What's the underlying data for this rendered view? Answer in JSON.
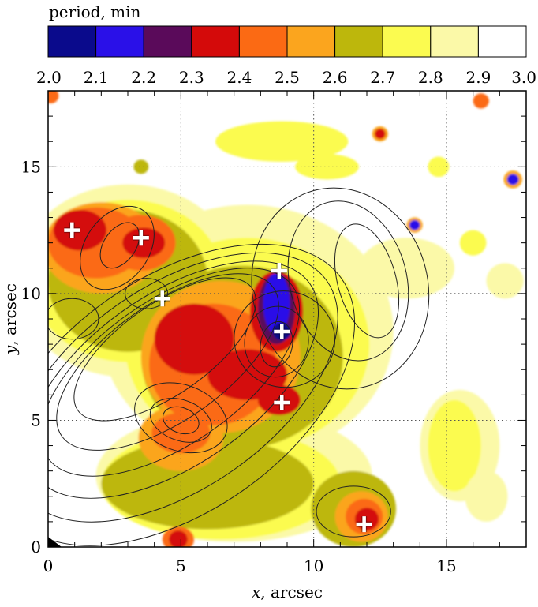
{
  "chart_data": {
    "type": "heatmap",
    "colorbar": {
      "title": "period, min",
      "ticks": [
        "2.0",
        "2.1",
        "2.2",
        "2.3",
        "2.4",
        "2.5",
        "2.6",
        "2.7",
        "2.8",
        "2.9",
        "3.0"
      ],
      "range": [
        2.0,
        3.0
      ],
      "bins": [
        {
          "from": 2.0,
          "to": 2.1,
          "color": "#0a0a8c"
        },
        {
          "from": 2.1,
          "to": 2.2,
          "color": "#2a10e8"
        },
        {
          "from": 2.2,
          "to": 2.3,
          "color": "#5a0a5a"
        },
        {
          "from": 2.3,
          "to": 2.4,
          "color": "#d40a0a"
        },
        {
          "from": 2.4,
          "to": 2.5,
          "color": "#fb6a14"
        },
        {
          "from": 2.5,
          "to": 2.6,
          "color": "#fba51e"
        },
        {
          "from": 2.6,
          "to": 2.7,
          "color": "#bdb70c"
        },
        {
          "from": 2.7,
          "to": 2.8,
          "color": "#fbfb50"
        },
        {
          "from": 2.8,
          "to": 2.9,
          "color": "#fbf9a8"
        },
        {
          "from": 2.9,
          "to": 3.0,
          "color": "#ffffff"
        }
      ]
    },
    "xlabel_var": "x",
    "xlabel_unit": ", arcsec",
    "ylabel_var": "y",
    "ylabel_unit": ", arcsec",
    "xlim": [
      0,
      18
    ],
    "ylim": [
      0,
      18
    ],
    "xticks": [
      0,
      5,
      10,
      15
    ],
    "yticks": [
      0,
      5,
      10,
      15
    ],
    "grid": true,
    "markers": [
      {
        "x": 0.9,
        "y": 12.5
      },
      {
        "x": 3.5,
        "y": 12.2
      },
      {
        "x": 4.3,
        "y": 9.8
      },
      {
        "x": 8.7,
        "y": 10.9
      },
      {
        "x": 8.8,
        "y": 8.5
      },
      {
        "x": 8.8,
        "y": 5.7
      },
      {
        "x": 11.9,
        "y": 0.9
      }
    ],
    "blobs": [
      {
        "x": 7.5,
        "y": 8.5,
        "rx": 5.5,
        "ry": 5.0,
        "color": "#fbf9a8"
      },
      {
        "x": 3.0,
        "y": 10.5,
        "rx": 4.2,
        "ry": 3.8,
        "color": "#fbf9a8"
      },
      {
        "x": 7.0,
        "y": 2.8,
        "rx": 5.2,
        "ry": 2.6,
        "color": "#fbf9a8"
      },
      {
        "x": 15.5,
        "y": 4.0,
        "rx": 1.5,
        "ry": 2.2,
        "color": "#fbf9a8"
      },
      {
        "x": 3.0,
        "y": 10.5,
        "rx": 3.6,
        "ry": 3.2,
        "color": "#fbfb50"
      },
      {
        "x": 7.5,
        "y": 8.0,
        "rx": 4.6,
        "ry": 4.2,
        "color": "#fbfb50"
      },
      {
        "x": 6.5,
        "y": 2.5,
        "rx": 4.5,
        "ry": 2.2,
        "color": "#fbfb50"
      },
      {
        "x": 15.3,
        "y": 4.0,
        "rx": 1.0,
        "ry": 1.8,
        "color": "#fbfb50"
      },
      {
        "x": 3.0,
        "y": 10.5,
        "rx": 3.0,
        "ry": 2.8,
        "color": "#bdb70c"
      },
      {
        "x": 7.3,
        "y": 7.5,
        "rx": 3.8,
        "ry": 3.6,
        "color": "#bdb70c"
      },
      {
        "x": 6.0,
        "y": 2.5,
        "rx": 4.0,
        "ry": 1.8,
        "color": "#bdb70c"
      },
      {
        "x": 11.5,
        "y": 1.5,
        "rx": 1.6,
        "ry": 1.5,
        "color": "#bdb70c"
      },
      {
        "x": 2.0,
        "y": 11.8,
        "rx": 2.2,
        "ry": 1.8,
        "color": "#fba51e"
      },
      {
        "x": 6.5,
        "y": 7.5,
        "rx": 3.0,
        "ry": 3.0,
        "color": "#fba51e"
      },
      {
        "x": 5.0,
        "y": 4.3,
        "rx": 1.6,
        "ry": 1.3,
        "color": "#fba51e"
      },
      {
        "x": 11.8,
        "y": 1.2,
        "rx": 1.0,
        "ry": 1.0,
        "color": "#fba51e"
      },
      {
        "x": 1.8,
        "y": 12.0,
        "rx": 1.8,
        "ry": 1.4,
        "color": "#fb6a14"
      },
      {
        "x": 3.5,
        "y": 12.0,
        "rx": 1.3,
        "ry": 1.1,
        "color": "#fb6a14"
      },
      {
        "x": 6.2,
        "y": 7.2,
        "rx": 2.4,
        "ry": 2.4,
        "color": "#fb6a14"
      },
      {
        "x": 5.0,
        "y": 4.5,
        "rx": 1.1,
        "ry": 0.8,
        "color": "#fb6a14"
      },
      {
        "x": 11.9,
        "y": 1.2,
        "rx": 0.7,
        "ry": 0.7,
        "color": "#fb6a14"
      },
      {
        "x": 4.9,
        "y": 0.3,
        "rx": 0.6,
        "ry": 0.5,
        "color": "#fb6a14"
      },
      {
        "x": 1.2,
        "y": 12.5,
        "rx": 1.0,
        "ry": 0.8,
        "color": "#d40a0a"
      },
      {
        "x": 3.6,
        "y": 12.0,
        "rx": 0.8,
        "ry": 0.6,
        "color": "#d40a0a"
      },
      {
        "x": 5.5,
        "y": 8.2,
        "rx": 1.5,
        "ry": 1.4,
        "color": "#d40a0a"
      },
      {
        "x": 7.5,
        "y": 6.8,
        "rx": 1.5,
        "ry": 1.0,
        "color": "#d40a0a"
      },
      {
        "x": 8.7,
        "y": 5.8,
        "rx": 0.8,
        "ry": 0.6,
        "color": "#d40a0a"
      },
      {
        "x": 8.6,
        "y": 9.3,
        "rx": 1.0,
        "ry": 1.6,
        "color": "#d40a0a"
      },
      {
        "x": 12.0,
        "y": 1.1,
        "rx": 0.45,
        "ry": 0.45,
        "color": "#d40a0a"
      },
      {
        "x": 4.9,
        "y": 0.3,
        "rx": 0.35,
        "ry": 0.35,
        "color": "#d40a0a"
      },
      {
        "x": 8.6,
        "y": 9.4,
        "rx": 0.7,
        "ry": 1.4,
        "color": "#5a0a5a"
      },
      {
        "x": 8.6,
        "y": 9.6,
        "rx": 0.5,
        "ry": 1.2,
        "color": "#2a10e8"
      },
      {
        "x": 8.8,
        "y": 8.5,
        "rx": 0.35,
        "ry": 0.35,
        "color": "#0a0a8c"
      },
      {
        "x": 12.5,
        "y": 16.3,
        "rx": 0.3,
        "ry": 0.3,
        "color": "#fba51e"
      },
      {
        "x": 12.5,
        "y": 16.3,
        "rx": 0.2,
        "ry": 0.2,
        "color": "#d40a0a"
      },
      {
        "x": 13.8,
        "y": 12.7,
        "rx": 0.3,
        "ry": 0.3,
        "color": "#fba51e"
      },
      {
        "x": 13.8,
        "y": 12.7,
        "rx": 0.2,
        "ry": 0.2,
        "color": "#2a10e8"
      },
      {
        "x": 17.5,
        "y": 14.5,
        "rx": 0.35,
        "ry": 0.35,
        "color": "#fba51e"
      },
      {
        "x": 17.5,
        "y": 14.5,
        "rx": 0.22,
        "ry": 0.22,
        "color": "#2a10e8"
      },
      {
        "x": 3.5,
        "y": 15.0,
        "rx": 0.28,
        "ry": 0.28,
        "color": "#bdb70c"
      },
      {
        "x": 16.3,
        "y": 17.6,
        "rx": 0.3,
        "ry": 0.3,
        "color": "#fb6a14"
      },
      {
        "x": 0.1,
        "y": 17.8,
        "rx": 0.3,
        "ry": 0.3,
        "color": "#fb6a14"
      },
      {
        "x": 8.8,
        "y": 16.0,
        "rx": 2.5,
        "ry": 0.8,
        "color": "#fbfb50"
      },
      {
        "x": 10.5,
        "y": 15.0,
        "rx": 1.2,
        "ry": 0.5,
        "color": "#fbfb50"
      },
      {
        "x": 13.5,
        "y": 11.0,
        "rx": 1.8,
        "ry": 1.2,
        "color": "#fbf9a8"
      },
      {
        "x": 14.7,
        "y": 15.0,
        "rx": 0.4,
        "ry": 0.4,
        "color": "#fbfb50"
      },
      {
        "x": 16.0,
        "y": 12.0,
        "rx": 0.5,
        "ry": 0.5,
        "color": "#fbfb50"
      },
      {
        "x": 17.2,
        "y": 10.5,
        "rx": 0.7,
        "ry": 0.7,
        "color": "#fbf9a8"
      },
      {
        "x": 16.5,
        "y": 2.0,
        "rx": 0.8,
        "ry": 1.0,
        "color": "#fbf9a8"
      }
    ],
    "contours": [
      {
        "cx": 4.8,
        "cy": 6.0,
        "rx": 4.4,
        "ry": 8.0,
        "rot": 55
      },
      {
        "cx": 4.8,
        "cy": 6.3,
        "rx": 3.8,
        "ry": 7.3,
        "rot": 55
      },
      {
        "cx": 4.7,
        "cy": 6.6,
        "rx": 3.2,
        "ry": 6.6,
        "rot": 55
      },
      {
        "cx": 4.6,
        "cy": 6.9,
        "rx": 2.7,
        "ry": 5.9,
        "rot": 55
      },
      {
        "cx": 4.5,
        "cy": 7.3,
        "rx": 2.2,
        "ry": 5.1,
        "rot": 55
      },
      {
        "cx": 4.4,
        "cy": 7.8,
        "rx": 1.7,
        "ry": 4.2,
        "rot": 55
      },
      {
        "cx": 2.6,
        "cy": 11.8,
        "rx": 1.2,
        "ry": 1.8,
        "rot": 35
      },
      {
        "cx": 2.7,
        "cy": 11.9,
        "rx": 0.6,
        "ry": 1.0,
        "rot": 35
      },
      {
        "cx": 5.0,
        "cy": 5.0,
        "rx": 0.7,
        "ry": 0.5,
        "rot": 20
      },
      {
        "cx": 5.0,
        "cy": 5.0,
        "rx": 1.2,
        "ry": 0.8,
        "rot": 20
      },
      {
        "cx": 5.0,
        "cy": 5.1,
        "rx": 1.8,
        "ry": 1.3,
        "rot": 20
      },
      {
        "cx": 8.6,
        "cy": 8.0,
        "rx": 0.6,
        "ry": 0.9,
        "rot": 10
      },
      {
        "cx": 8.6,
        "cy": 8.1,
        "rx": 1.2,
        "ry": 1.4,
        "rot": 10
      },
      {
        "cx": 8.9,
        "cy": 8.2,
        "rx": 1.9,
        "ry": 1.9,
        "rot": 10
      },
      {
        "cx": 11.0,
        "cy": 10.2,
        "rx": 3.3,
        "ry": 4.0,
        "rot": -15
      },
      {
        "cx": 11.3,
        "cy": 10.5,
        "rx": 2.2,
        "ry": 3.2,
        "rot": -15
      },
      {
        "cx": 12.0,
        "cy": 10.5,
        "rx": 1.1,
        "ry": 2.3,
        "rot": -15
      },
      {
        "cx": 0.9,
        "cy": 9.0,
        "rx": 1.0,
        "ry": 0.8,
        "rot": 0
      },
      {
        "cx": 3.7,
        "cy": 10.0,
        "rx": 0.8,
        "ry": 0.6,
        "rot": 0
      },
      {
        "cx": 11.5,
        "cy": 1.4,
        "rx": 1.4,
        "ry": 1.0,
        "rot": 0
      }
    ]
  }
}
